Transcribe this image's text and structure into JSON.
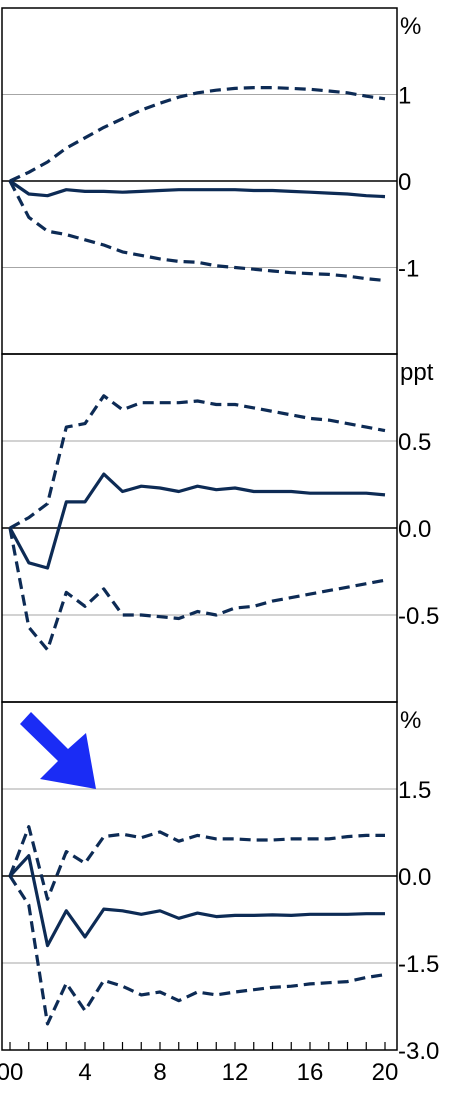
{
  "colors": {
    "line": "#0d2b55",
    "grid": "#a6a6a6",
    "frame": "#000000",
    "arrow": "#1a2cf5"
  },
  "arrow_icon": "down-right-arrow",
  "chart_data": [
    {
      "type": "line",
      "unit": "%",
      "ylim": [
        -2,
        2
      ],
      "ytick_labels": [
        {
          "v": 1,
          "label": "1"
        },
        {
          "v": 0,
          "label": "0"
        },
        {
          "v": -1,
          "label": "-1"
        }
      ],
      "grid": [
        1,
        0,
        -1
      ],
      "series": [
        {
          "style": "dashed",
          "x": [
            0,
            1,
            2,
            3,
            4,
            5,
            6,
            7,
            8,
            9,
            10,
            11,
            12,
            13,
            14,
            15,
            16,
            17,
            18,
            19,
            20
          ],
          "values": [
            0,
            0.1,
            0.22,
            0.38,
            0.5,
            0.62,
            0.72,
            0.82,
            0.9,
            0.97,
            1.02,
            1.05,
            1.07,
            1.08,
            1.08,
            1.07,
            1.06,
            1.04,
            1.02,
            0.98,
            0.95
          ]
        },
        {
          "style": "solid",
          "x": [
            0,
            1,
            2,
            3,
            4,
            5,
            6,
            7,
            8,
            9,
            10,
            11,
            12,
            13,
            14,
            15,
            16,
            17,
            18,
            19,
            20
          ],
          "values": [
            0,
            -0.15,
            -0.17,
            -0.1,
            -0.12,
            -0.12,
            -0.13,
            -0.12,
            -0.11,
            -0.1,
            -0.1,
            -0.1,
            -0.1,
            -0.11,
            -0.11,
            -0.12,
            -0.13,
            -0.14,
            -0.15,
            -0.17,
            -0.18
          ]
        },
        {
          "style": "dashed",
          "x": [
            0,
            1,
            2,
            3,
            4,
            5,
            6,
            7,
            8,
            9,
            10,
            11,
            12,
            13,
            14,
            15,
            16,
            17,
            18,
            19,
            20
          ],
          "values": [
            0,
            -0.42,
            -0.58,
            -0.62,
            -0.68,
            -0.74,
            -0.82,
            -0.86,
            -0.9,
            -0.93,
            -0.94,
            -0.98,
            -1.0,
            -1.02,
            -1.04,
            -1.06,
            -1.07,
            -1.08,
            -1.1,
            -1.13,
            -1.15
          ]
        }
      ]
    },
    {
      "type": "line",
      "unit": "ppt",
      "ylim": [
        -1.0,
        1.0
      ],
      "ytick_labels": [
        {
          "v": 0.5,
          "label": "0.5"
        },
        {
          "v": 0,
          "label": "0.0"
        },
        {
          "v": -0.5,
          "label": "-0.5"
        }
      ],
      "grid": [
        0.5,
        0,
        -0.5
      ],
      "series": [
        {
          "style": "dashed",
          "x": [
            0,
            1,
            2,
            3,
            4,
            5,
            6,
            7,
            8,
            9,
            10,
            11,
            12,
            13,
            14,
            15,
            16,
            17,
            18,
            19,
            20
          ],
          "values": [
            0,
            0.06,
            0.14,
            0.58,
            0.6,
            0.76,
            0.68,
            0.72,
            0.72,
            0.72,
            0.73,
            0.71,
            0.71,
            0.69,
            0.67,
            0.65,
            0.63,
            0.62,
            0.6,
            0.58,
            0.56
          ]
        },
        {
          "style": "solid",
          "x": [
            0,
            1,
            2,
            3,
            4,
            5,
            6,
            7,
            8,
            9,
            10,
            11,
            12,
            13,
            14,
            15,
            16,
            17,
            18,
            19,
            20
          ],
          "values": [
            0,
            -0.2,
            -0.23,
            0.15,
            0.15,
            0.31,
            0.21,
            0.24,
            0.23,
            0.21,
            0.24,
            0.22,
            0.23,
            0.21,
            0.21,
            0.21,
            0.2,
            0.2,
            0.2,
            0.2,
            0.19
          ]
        },
        {
          "style": "dashed",
          "x": [
            0,
            1,
            2,
            3,
            4,
            5,
            6,
            7,
            8,
            9,
            10,
            11,
            12,
            13,
            14,
            15,
            16,
            17,
            18,
            19,
            20
          ],
          "values": [
            0,
            -0.57,
            -0.7,
            -0.37,
            -0.45,
            -0.35,
            -0.5,
            -0.5,
            -0.51,
            -0.52,
            -0.48,
            -0.5,
            -0.46,
            -0.45,
            -0.42,
            -0.4,
            -0.38,
            -0.36,
            -0.34,
            -0.32,
            -0.3
          ]
        }
      ]
    },
    {
      "type": "line",
      "unit": "%",
      "ylim": [
        -3.0,
        3.0
      ],
      "ytick_labels": [
        {
          "v": 1.5,
          "label": "1.5"
        },
        {
          "v": 0,
          "label": "0.0"
        },
        {
          "v": -1.5,
          "label": "-1.5"
        },
        {
          "v": -3.0,
          "label": "-3.0"
        }
      ],
      "grid": [
        1.5,
        0,
        -1.5
      ],
      "x_ticks": [
        0,
        4,
        8,
        12,
        16,
        20
      ],
      "xtick_labels": [
        "00",
        "4",
        "8",
        "12",
        "16",
        "20"
      ],
      "series": [
        {
          "style": "dashed",
          "x": [
            0,
            1,
            2,
            3,
            4,
            5,
            6,
            7,
            8,
            9,
            10,
            11,
            12,
            13,
            14,
            15,
            16,
            17,
            18,
            19,
            20
          ],
          "values": [
            0,
            0.85,
            -0.4,
            0.42,
            0.22,
            0.68,
            0.72,
            0.66,
            0.76,
            0.6,
            0.7,
            0.64,
            0.64,
            0.62,
            0.62,
            0.64,
            0.64,
            0.64,
            0.68,
            0.7,
            0.7
          ]
        },
        {
          "style": "solid",
          "x": [
            0,
            1,
            2,
            3,
            4,
            5,
            6,
            7,
            8,
            9,
            10,
            11,
            12,
            13,
            14,
            15,
            16,
            17,
            18,
            19,
            20
          ],
          "values": [
            0,
            0.35,
            -1.2,
            -0.6,
            -1.05,
            -0.57,
            -0.6,
            -0.66,
            -0.6,
            -0.73,
            -0.64,
            -0.7,
            -0.68,
            -0.68,
            -0.67,
            -0.68,
            -0.66,
            -0.66,
            -0.66,
            -0.65,
            -0.65
          ]
        },
        {
          "style": "dashed",
          "x": [
            0,
            1,
            2,
            3,
            4,
            5,
            6,
            7,
            8,
            9,
            10,
            11,
            12,
            13,
            14,
            15,
            16,
            17,
            18,
            19,
            20
          ],
          "values": [
            0,
            -0.5,
            -2.55,
            -1.85,
            -2.32,
            -1.8,
            -1.9,
            -2.05,
            -2.0,
            -2.15,
            -2.0,
            -2.05,
            -2.0,
            -1.96,
            -1.92,
            -1.9,
            -1.86,
            -1.84,
            -1.82,
            -1.75,
            -1.7
          ]
        }
      ]
    }
  ]
}
